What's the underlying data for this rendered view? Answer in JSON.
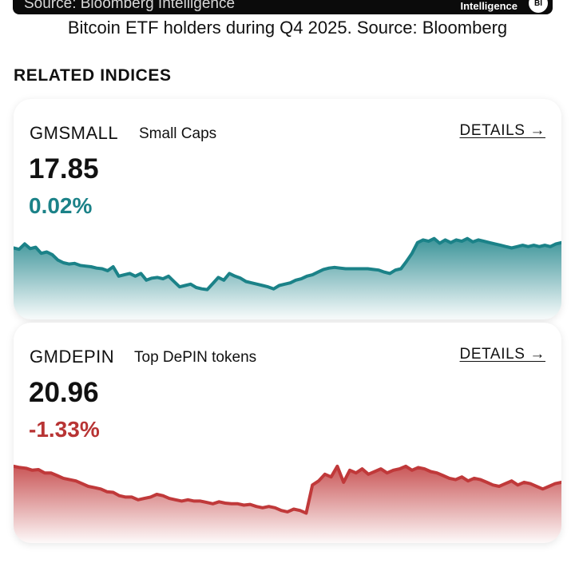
{
  "banner": {
    "source_text": "Source: Bloomberg Intelligence",
    "brand": "Intelligence",
    "badge": "BI"
  },
  "caption": "Bitcoin ETF holders during Q4 2025. Source: Bloomberg",
  "section_title": "RELATED INDICES",
  "indices": [
    {
      "symbol": "GMSMALL",
      "description": "Small Caps",
      "details_label": "DETAILS →",
      "value": "17.85",
      "change": "0.02%",
      "trend": "positive",
      "color": "#1b8288"
    },
    {
      "symbol": "GMDEPIN",
      "description": "Top DePIN tokens",
      "details_label": "DETAILS →",
      "value": "20.96",
      "change": "-1.33%",
      "trend": "negative",
      "color": "#c0393a"
    }
  ],
  "chart_data": [
    {
      "type": "area",
      "series": [
        {
          "name": "GMSMALL",
          "values": [
            78,
            76,
            84,
            77,
            79,
            70,
            72,
            68,
            60,
            56,
            54,
            55,
            52,
            51,
            50,
            48,
            47,
            44,
            50,
            36,
            38,
            40,
            36,
            40,
            30,
            33,
            34,
            32,
            36,
            28,
            20,
            22,
            24,
            19,
            17,
            16,
            25,
            34,
            30,
            40,
            36,
            33,
            28,
            26,
            24,
            22,
            20,
            17,
            22,
            24,
            26,
            30,
            32,
            36,
            38,
            42,
            46,
            48,
            49,
            48,
            47,
            47,
            47,
            47,
            47,
            46,
            45,
            42,
            40,
            45,
            47,
            58,
            70,
            86,
            90,
            88,
            92,
            85,
            90,
            86,
            90,
            88,
            92,
            87,
            90,
            88,
            86,
            84,
            82,
            80,
            78,
            80,
            82,
            80,
            82,
            80,
            82,
            80,
            84,
            86
          ]
        }
      ]
    },
    {
      "type": "area",
      "series": [
        {
          "name": "GMDEPIN",
          "values": [
            86,
            84,
            83,
            80,
            81,
            76,
            76,
            72,
            68,
            66,
            64,
            60,
            56,
            54,
            52,
            48,
            47,
            42,
            40,
            40,
            36,
            38,
            40,
            44,
            42,
            38,
            36,
            34,
            36,
            34,
            34,
            32,
            30,
            33,
            31,
            30,
            30,
            28,
            29,
            26,
            24,
            26,
            24,
            20,
            18,
            22,
            20,
            16,
            58,
            64,
            74,
            70,
            86,
            62,
            80,
            76,
            82,
            74,
            78,
            82,
            76,
            80,
            82,
            86,
            80,
            84,
            82,
            78,
            76,
            72,
            68,
            66,
            70,
            64,
            68,
            66,
            62,
            58,
            56,
            60,
            64,
            58,
            62,
            60,
            56,
            52,
            56,
            60,
            62
          ]
        }
      ]
    }
  ]
}
